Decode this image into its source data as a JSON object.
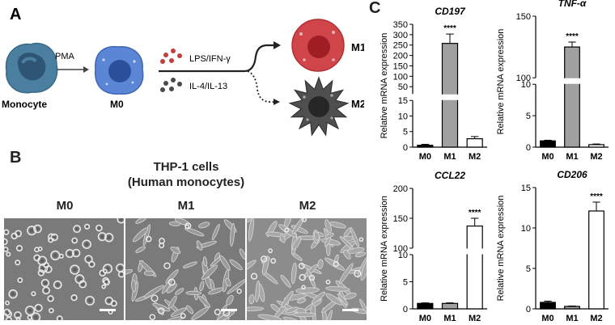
{
  "panel_a": {
    "label": "A",
    "monocyte_label": "Monocyte",
    "pma_label": "PMA",
    "m0_label": "M0",
    "lps_label": "LPS/IFN-γ",
    "il_label": "IL-4/IL-13",
    "m1_label": "M1",
    "m2_label": "M2",
    "colors": {
      "monocyte": "#4a7fa0",
      "m0": "#5b86d6",
      "m1": "#d0454a",
      "m2": "#4f4f4f",
      "lps_dots": "#c0403f",
      "il_dots": "#4a4a4a"
    }
  },
  "panel_b": {
    "label": "B",
    "title_line1": "THP-1 cells",
    "title_line2": "(Human monocytes)",
    "images": [
      {
        "label": "M0"
      },
      {
        "label": "M1"
      },
      {
        "label": "M2"
      }
    ]
  },
  "panel_c": {
    "label": "C"
  },
  "chart_data": [
    {
      "type": "bar",
      "title": "CD197",
      "ylabel": "Relative mRNA expression",
      "categories": [
        "M0",
        "M1",
        "M2"
      ],
      "values": [
        0.6,
        258,
        2.7
      ],
      "errors": [
        0.3,
        45,
        0.7
      ],
      "colors": [
        "#000000",
        "#a0a0a0",
        "#ffffff"
      ],
      "significance": [
        "",
        "****",
        ""
      ],
      "axis_break": true,
      "lower_range": [
        0,
        15
      ],
      "upper_range": [
        15,
        350
      ],
      "lower_ticks": [
        0,
        5,
        10,
        15
      ],
      "upper_ticks": [
        50,
        100,
        150,
        200,
        250,
        300,
        350
      ]
    },
    {
      "type": "bar",
      "title": "TNF-α",
      "ylabel": "Relative mRNA expression",
      "categories": [
        "M0",
        "M1",
        "M2"
      ],
      "values": [
        1,
        125,
        0.4
      ],
      "errors": [
        0.1,
        4,
        0.1
      ],
      "colors": [
        "#000000",
        "#a0a0a0",
        "#ffffff"
      ],
      "significance": [
        "",
        "****",
        ""
      ],
      "axis_break": true,
      "lower_range": [
        0,
        10
      ],
      "upper_range": [
        100,
        150
      ],
      "lower_ticks": [
        0,
        5,
        10
      ],
      "upper_ticks": [
        100,
        150
      ]
    },
    {
      "type": "bar",
      "title": "CCL22",
      "ylabel": "Relative mRNA expression",
      "categories": [
        "M0",
        "M1",
        "M2"
      ],
      "values": [
        1,
        1,
        137
      ],
      "errors": [
        0.1,
        0.1,
        13
      ],
      "colors": [
        "#000000",
        "#a0a0a0",
        "#ffffff"
      ],
      "significance": [
        "",
        "",
        "****"
      ],
      "axis_break": true,
      "lower_range": [
        0,
        10
      ],
      "upper_range": [
        100,
        200
      ],
      "lower_ticks": [
        0,
        5,
        10
      ],
      "upper_ticks": [
        100,
        150,
        200
      ]
    },
    {
      "type": "bar",
      "title": "CD206",
      "ylabel": "Relative mRNA expression",
      "categories": [
        "M0",
        "M1",
        "M2"
      ],
      "values": [
        0.8,
        0.3,
        12.1
      ],
      "errors": [
        0.15,
        0.05,
        1.1
      ],
      "colors": [
        "#000000",
        "#a0a0a0",
        "#ffffff"
      ],
      "significance": [
        "",
        "",
        "****"
      ],
      "axis_break": false,
      "ylim": [
        0,
        15
      ],
      "ticks": [
        0,
        5,
        10,
        15
      ]
    }
  ]
}
